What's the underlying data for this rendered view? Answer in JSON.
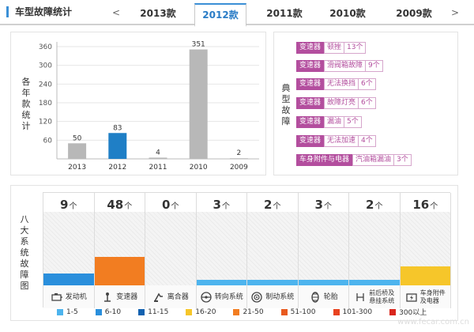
{
  "header": {
    "title": "车型故障统计",
    "prev": "<",
    "next": ">",
    "tabs": [
      {
        "label": "2013款",
        "active": false
      },
      {
        "label": "2012款",
        "active": true
      },
      {
        "label": "2011款",
        "active": false
      },
      {
        "label": "2010款",
        "active": false
      },
      {
        "label": "2009款",
        "active": false
      }
    ]
  },
  "year_panel": {
    "side_label": [
      "各",
      "年",
      "款",
      "统",
      "计"
    ]
  },
  "chart_data": {
    "type": "bar",
    "title": "各年款统计",
    "categories": [
      "2013",
      "2012",
      "2011",
      "2010",
      "2009"
    ],
    "values": [
      50,
      83,
      4,
      351,
      2
    ],
    "highlight": "2012",
    "yticks": [
      60,
      120,
      180,
      240,
      300,
      360
    ],
    "ylim": [
      0,
      360
    ],
    "colors": {
      "default": "#b8b8b8",
      "highlight": "#1f7fc6"
    }
  },
  "fault_panel": {
    "side_label": [
      "典",
      "型",
      "故",
      "障"
    ],
    "items": [
      {
        "category": "变速器",
        "desc": "顿挫",
        "count": "13个"
      },
      {
        "category": "变速器",
        "desc": "滑阀箱故障",
        "count": "9个"
      },
      {
        "category": "变速器",
        "desc": "无法换挡",
        "count": "6个"
      },
      {
        "category": "变速器",
        "desc": "故障灯亮",
        "count": "6个"
      },
      {
        "category": "变速器",
        "desc": "漏油",
        "count": "5个"
      },
      {
        "category": "变速器",
        "desc": "无法加速",
        "count": "4个"
      },
      {
        "category": "车身附件与电器",
        "desc": "汽油箱漏油",
        "count": "3个"
      }
    ]
  },
  "system_panel": {
    "side_label": [
      "八",
      "大",
      "系",
      "统",
      "故",
      "障",
      "图"
    ],
    "unit": "个",
    "systems": [
      {
        "name": "发动机",
        "count": 9,
        "icon": "engine-icon",
        "level": 0.16,
        "color": "#2a8fdc"
      },
      {
        "name": "变速器",
        "count": 48,
        "icon": "gearshift-icon",
        "level": 0.39,
        "color": "#f27d21"
      },
      {
        "name": "离合器",
        "count": 0,
        "icon": "clutch-icon",
        "level": 0,
        "color": "#4db4ee"
      },
      {
        "name": "转向系统",
        "count": 3,
        "icon": "steering-wheel-icon",
        "level": 0.07,
        "color": "#4db4ee"
      },
      {
        "name": "制动系统",
        "count": 2,
        "icon": "brake-disc-icon",
        "level": 0.07,
        "color": "#4db4ee"
      },
      {
        "name": "轮胎",
        "count": 3,
        "icon": "tire-icon",
        "level": 0.07,
        "color": "#4db4ee"
      },
      {
        "name": "前后桥及悬挂系统",
        "name_lines": [
          "前后桥及",
          "悬挂系统"
        ],
        "count": 2,
        "icon": "suspension-icon",
        "level": 0.07,
        "color": "#4db4ee"
      },
      {
        "name": "车身附件及电器",
        "name_lines": [
          "车身附件",
          "及电器"
        ],
        "count": 16,
        "icon": "electrical-icon",
        "level": 0.26,
        "color": "#f6c62a"
      }
    ],
    "legend": [
      {
        "label": "1-5",
        "color": "#4db4ee"
      },
      {
        "label": "6-10",
        "color": "#2a8fdc"
      },
      {
        "label": "11-15",
        "color": "#1262b0"
      },
      {
        "label": "16-20",
        "color": "#f6c62a"
      },
      {
        "label": "21-50",
        "color": "#f27d21"
      },
      {
        "label": "51-100",
        "color": "#e85a1f"
      },
      {
        "label": "101-300",
        "color": "#e8421f"
      },
      {
        "label": "300以上",
        "color": "#d9261c"
      }
    ]
  },
  "watermark": "www.fecar.com.cn"
}
